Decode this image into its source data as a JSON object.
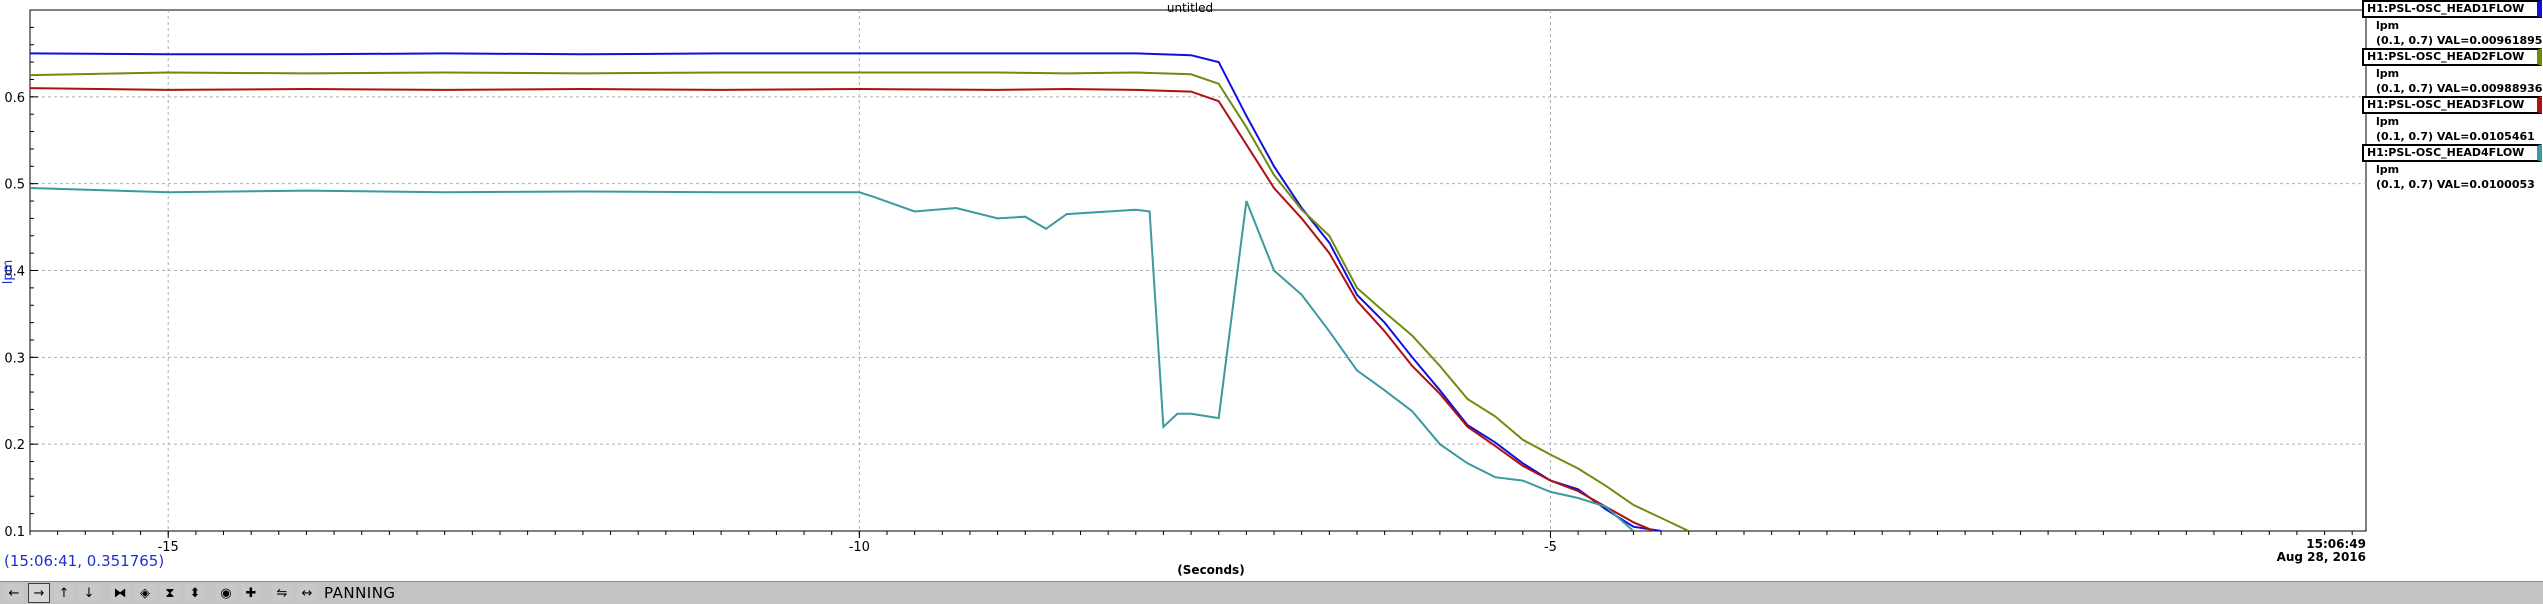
{
  "chart_data": {
    "type": "line",
    "title": "untitled",
    "xlabel": "(Seconds)",
    "ylabel": "lpm",
    "xlim": [
      -16.0,
      0.9
    ],
    "ylim": [
      0.1,
      0.7
    ],
    "x_ticks": [
      -15,
      -10,
      -5
    ],
    "y_ticks": [
      0.1,
      0.2,
      0.3,
      0.4,
      0.5,
      0.6
    ],
    "time_label": [
      "15:06:49",
      "Aug 28, 2016"
    ],
    "grid": true,
    "legend_position": "top-right",
    "series": [
      {
        "name": "H1:PSL-OSC_HEAD1FLOW",
        "color": "#1010e0",
        "x": [
          -16.0,
          -15.0,
          -14.0,
          -13.0,
          -12.0,
          -11.0,
          -10.0,
          -9.0,
          -8.5,
          -8.0,
          -7.6,
          -7.4,
          -7.2,
          -7.0,
          -6.8,
          -6.6,
          -6.4,
          -6.2,
          -6.0,
          -5.8,
          -5.6,
          -5.4,
          -5.2,
          -5.0,
          -4.8,
          -4.6,
          -4.4,
          -4.2
        ],
        "values": [
          0.65,
          0.649,
          0.649,
          0.65,
          0.649,
          0.65,
          0.65,
          0.65,
          0.65,
          0.65,
          0.648,
          0.64,
          0.578,
          0.52,
          0.472,
          0.432,
          0.372,
          0.34,
          0.3,
          0.262,
          0.222,
          0.202,
          0.178,
          0.158,
          0.148,
          0.125,
          0.105,
          0.1
        ]
      },
      {
        "name": "H1:PSL-OSC_HEAD2FLOW",
        "color": "#6e8c10",
        "x": [
          -16.0,
          -15.0,
          -14.0,
          -13.0,
          -12.0,
          -11.0,
          -10.0,
          -9.0,
          -8.5,
          -8.0,
          -7.6,
          -7.4,
          -7.2,
          -7.0,
          -6.8,
          -6.6,
          -6.4,
          -6.2,
          -6.0,
          -5.8,
          -5.6,
          -5.4,
          -5.2,
          -5.0,
          -4.8,
          -4.6,
          -4.4,
          -4.0
        ],
        "values": [
          0.625,
          0.628,
          0.627,
          0.628,
          0.627,
          0.628,
          0.628,
          0.628,
          0.627,
          0.628,
          0.626,
          0.615,
          0.565,
          0.51,
          0.47,
          0.44,
          0.38,
          0.352,
          0.325,
          0.29,
          0.252,
          0.232,
          0.205,
          0.188,
          0.172,
          0.152,
          0.13,
          0.1
        ]
      },
      {
        "name": "H1:PSL-OSC_HEAD3FLOW",
        "color": "#b01010",
        "x": [
          -16.0,
          -15.0,
          -14.0,
          -13.0,
          -12.0,
          -11.0,
          -10.0,
          -9.0,
          -8.5,
          -8.0,
          -7.6,
          -7.4,
          -7.2,
          -7.0,
          -6.8,
          -6.6,
          -6.4,
          -6.2,
          -6.0,
          -5.8,
          -5.6,
          -5.4,
          -5.2,
          -5.0,
          -4.8,
          -4.6,
          -4.4,
          -4.25
        ],
        "values": [
          0.61,
          0.608,
          0.609,
          0.608,
          0.609,
          0.608,
          0.609,
          0.608,
          0.609,
          0.608,
          0.606,
          0.595,
          0.545,
          0.495,
          0.46,
          0.42,
          0.365,
          0.33,
          0.29,
          0.258,
          0.22,
          0.198,
          0.175,
          0.158,
          0.146,
          0.128,
          0.11,
          0.1
        ]
      },
      {
        "name": "H1:PSL-OSC_HEAD4FLOW",
        "color": "#3a9aa0",
        "x": [
          -16.0,
          -15.0,
          -14.0,
          -13.0,
          -12.0,
          -11.0,
          -10.0,
          -9.9,
          -9.6,
          -9.3,
          -9.0,
          -8.8,
          -8.65,
          -8.5,
          -8.2,
          -8.0,
          -7.9,
          -7.8,
          -7.7,
          -7.6,
          -7.4,
          -7.2,
          -7.0,
          -6.8,
          -6.6,
          -6.4,
          -6.2,
          -6.0,
          -5.8,
          -5.6,
          -5.4,
          -5.2,
          -5.0,
          -4.8,
          -4.6,
          -4.4
        ],
        "values": [
          0.495,
          0.49,
          0.492,
          0.49,
          0.491,
          0.49,
          0.49,
          0.485,
          0.468,
          0.472,
          0.46,
          0.462,
          0.448,
          0.465,
          0.468,
          0.47,
          0.468,
          0.22,
          0.235,
          0.235,
          0.23,
          0.48,
          0.4,
          0.372,
          0.33,
          0.285,
          0.262,
          0.238,
          0.2,
          0.178,
          0.162,
          0.158,
          0.145,
          0.138,
          0.128,
          0.1
        ]
      }
    ]
  },
  "legend": [
    {
      "name": "H1:PSL-OSC_HEAD1FLOW",
      "unit": "lpm",
      "readout": "(0.1, 0.7) VAL=0.00961895",
      "color": "#1010e0"
    },
    {
      "name": "H1:PSL-OSC_HEAD2FLOW",
      "unit": "lpm",
      "readout": "(0.1, 0.7) VAL=0.00988936",
      "color": "#6e8c10"
    },
    {
      "name": "H1:PSL-OSC_HEAD3FLOW",
      "unit": "lpm",
      "readout": "(0.1, 0.7) VAL=0.0105461",
      "color": "#b01010"
    },
    {
      "name": "H1:PSL-OSC_HEAD4FLOW",
      "unit": "lpm",
      "readout": "(0.1, 0.7) VAL=0.0100053",
      "color": "#3a9aa0"
    }
  ],
  "cursor_readout": "(15:06:41, 0.351765)",
  "toolbar": {
    "mode_label": "PANNING",
    "buttons": [
      {
        "name": "scroll-left-button",
        "icon": "arrow-left-icon",
        "glyph": "←",
        "active": false
      },
      {
        "name": "scroll-right-button",
        "icon": "arrow-right-icon",
        "glyph": "→",
        "active": true
      },
      {
        "name": "scroll-up-button",
        "icon": "arrow-up-icon",
        "glyph": "↑",
        "active": false
      },
      {
        "name": "scroll-down-button",
        "icon": "arrow-down-icon",
        "glyph": "↓",
        "active": false
      },
      {
        "name": "zoom-in-x-button",
        "icon": "zoom-in-x-icon",
        "glyph": "⧓",
        "active": false
      },
      {
        "name": "zoom-out-x-button",
        "icon": "zoom-out-x-icon",
        "glyph": "◈",
        "active": false
      },
      {
        "name": "zoom-in-y-button",
        "icon": "zoom-in-y-icon",
        "glyph": "⧗",
        "active": false
      },
      {
        "name": "zoom-out-y-button",
        "icon": "zoom-out-y-icon",
        "glyph": "⬍",
        "active": false
      },
      {
        "name": "reset-button",
        "icon": "target-icon",
        "glyph": "◉",
        "active": false
      },
      {
        "name": "add-trace-button",
        "icon": "plus-icon",
        "glyph": "✚",
        "active": false
      },
      {
        "name": "autoscale-button",
        "icon": "autoscale-icon",
        "glyph": "⇋",
        "active": false
      },
      {
        "name": "pan-button",
        "icon": "pan-icon",
        "glyph": "↔",
        "active": false
      }
    ]
  }
}
